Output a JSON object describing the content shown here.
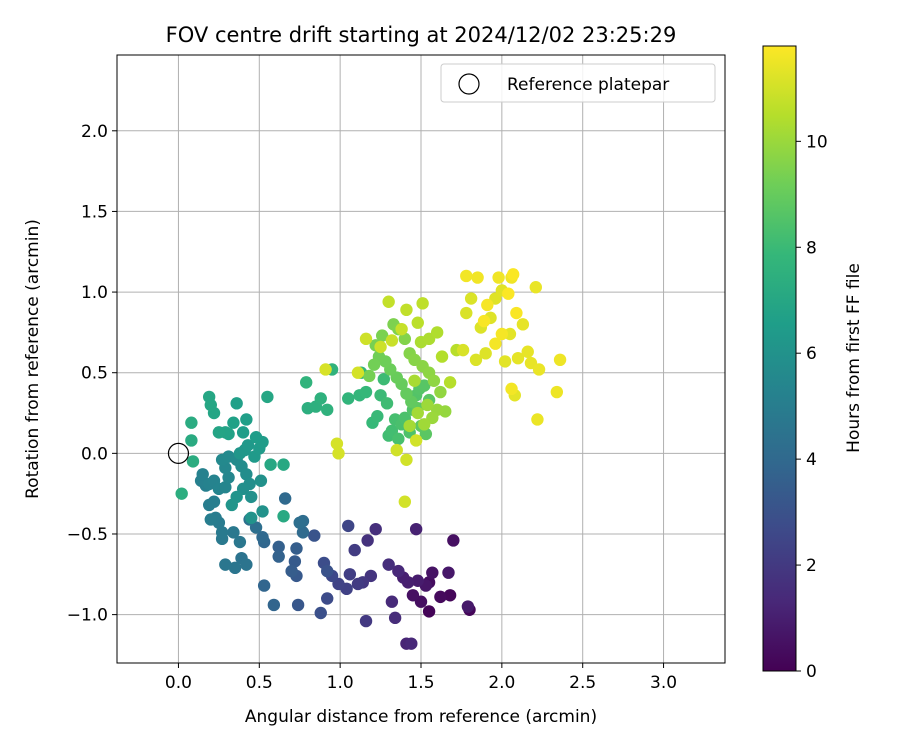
{
  "chart_data": {
    "type": "scatter",
    "title": "FOV centre drift starting at 2024/12/02 23:25:29",
    "xlabel": "Angular distance from reference (arcmin)",
    "ylabel": "Rotation from reference (arcmin)",
    "xlim": [
      -0.38,
      3.38
    ],
    "ylim": [
      -1.3,
      2.47
    ],
    "xticks": [
      0.0,
      0.5,
      1.0,
      1.5,
      2.0,
      2.5,
      3.0
    ],
    "xtick_labels": [
      "0.0",
      "0.5",
      "1.0",
      "1.5",
      "2.0",
      "2.5",
      "3.0"
    ],
    "yticks": [
      -1.0,
      -0.5,
      0.0,
      0.5,
      1.0,
      1.5,
      2.0
    ],
    "ytick_labels": [
      "−1.0",
      "−0.5",
      "0.0",
      "0.5",
      "1.0",
      "1.5",
      "2.0"
    ],
    "grid": true,
    "legend": {
      "position": "upper right",
      "entries": [
        "Reference platepar"
      ]
    },
    "reference_point": {
      "label": "Reference platepar",
      "x": 0.0,
      "y": 0.0
    },
    "colorbar": {
      "label": "Hours from first FF file",
      "colormap": "viridis",
      "range": [
        0,
        11.8
      ],
      "ticks": [
        0,
        2,
        4,
        6,
        8,
        10
      ],
      "tick_labels": [
        "0",
        "2",
        "4",
        "6",
        "8",
        "10"
      ]
    },
    "viridis_stops": [
      "#440154",
      "#482878",
      "#3e4989",
      "#31688e",
      "#26828e",
      "#1f9e89",
      "#35b779",
      "#6ece58",
      "#b5de2b",
      "#fde725"
    ],
    "color_by": "hours",
    "points": [
      {
        "x": 1.55,
        "y": -0.98,
        "h": 0.1
      },
      {
        "x": 1.8,
        "y": -0.97,
        "h": 0.15
      },
      {
        "x": 1.68,
        "y": -0.88,
        "h": 0.2
      },
      {
        "x": 1.62,
        "y": -0.89,
        "h": 0.3
      },
      {
        "x": 1.55,
        "y": -0.8,
        "h": 0.4
      },
      {
        "x": 1.5,
        "y": -0.92,
        "h": 0.45
      },
      {
        "x": 1.45,
        "y": -0.88,
        "h": 0.5
      },
      {
        "x": 1.7,
        "y": -0.54,
        "h": 0.5
      },
      {
        "x": 1.57,
        "y": -0.74,
        "h": 0.6
      },
      {
        "x": 1.53,
        "y": -0.82,
        "h": 0.7
      },
      {
        "x": 1.67,
        "y": -0.74,
        "h": 0.75
      },
      {
        "x": 1.79,
        "y": -0.95,
        "h": 0.8
      },
      {
        "x": 1.48,
        "y": -0.79,
        "h": 0.9
      },
      {
        "x": 1.42,
        "y": -0.8,
        "h": 1.0
      },
      {
        "x": 1.39,
        "y": -0.77,
        "h": 1.05
      },
      {
        "x": 1.47,
        "y": -0.47,
        "h": 1.1
      },
      {
        "x": 1.41,
        "y": -1.18,
        "h": 1.2
      },
      {
        "x": 1.44,
        "y": -1.18,
        "h": 1.3
      },
      {
        "x": 1.36,
        "y": -0.73,
        "h": 1.35
      },
      {
        "x": 1.32,
        "y": -0.92,
        "h": 1.4
      },
      {
        "x": 1.34,
        "y": -1.02,
        "h": 1.5
      },
      {
        "x": 1.3,
        "y": -0.69,
        "h": 1.55
      },
      {
        "x": 1.22,
        "y": -0.47,
        "h": 1.6
      },
      {
        "x": 1.17,
        "y": -0.54,
        "h": 1.7
      },
      {
        "x": 1.19,
        "y": -0.76,
        "h": 1.8
      },
      {
        "x": 1.14,
        "y": -0.8,
        "h": 1.9
      },
      {
        "x": 1.16,
        "y": -1.04,
        "h": 2.0
      },
      {
        "x": 1.11,
        "y": -0.81,
        "h": 2.05
      },
      {
        "x": 1.09,
        "y": -0.6,
        "h": 2.1
      },
      {
        "x": 1.06,
        "y": -0.75,
        "h": 2.2
      },
      {
        "x": 1.04,
        "y": -0.84,
        "h": 2.3
      },
      {
        "x": 0.99,
        "y": -0.81,
        "h": 2.4
      },
      {
        "x": 1.05,
        "y": -0.45,
        "h": 2.5
      },
      {
        "x": 0.95,
        "y": -0.76,
        "h": 2.6
      },
      {
        "x": 0.92,
        "y": -0.9,
        "h": 2.7
      },
      {
        "x": 0.9,
        "y": -0.68,
        "h": 2.8
      },
      {
        "x": 0.88,
        "y": -0.99,
        "h": 2.9
      },
      {
        "x": 0.92,
        "y": -0.73,
        "h": 3.0
      },
      {
        "x": 0.84,
        "y": -0.51,
        "h": 3.1
      },
      {
        "x": 0.74,
        "y": -0.94,
        "h": 3.2
      },
      {
        "x": 0.73,
        "y": -0.76,
        "h": 3.3
      },
      {
        "x": 0.72,
        "y": -0.67,
        "h": 3.4
      },
      {
        "x": 0.7,
        "y": -0.73,
        "h": 3.45
      },
      {
        "x": 0.73,
        "y": -0.59,
        "h": 3.5
      },
      {
        "x": 0.62,
        "y": -0.58,
        "h": 3.6
      },
      {
        "x": 0.62,
        "y": -0.64,
        "h": 3.7
      },
      {
        "x": 0.59,
        "y": -0.94,
        "h": 3.8
      },
      {
        "x": 0.53,
        "y": -0.82,
        "h": 3.85
      },
      {
        "x": 0.53,
        "y": -0.55,
        "h": 3.9
      },
      {
        "x": 0.52,
        "y": -0.52,
        "h": 4.0
      },
      {
        "x": 0.66,
        "y": -0.28,
        "h": 4.05
      },
      {
        "x": 0.77,
        "y": -0.49,
        "h": 4.1
      },
      {
        "x": 0.77,
        "y": -0.42,
        "h": 4.2
      },
      {
        "x": 0.75,
        "y": -0.43,
        "h": 4.3
      },
      {
        "x": 0.48,
        "y": -0.46,
        "h": 4.3
      },
      {
        "x": 0.44,
        "y": -0.41,
        "h": 4.4
      },
      {
        "x": 0.39,
        "y": -0.65,
        "h": 4.5
      },
      {
        "x": 0.42,
        "y": -0.69,
        "h": 4.55
      },
      {
        "x": 0.35,
        "y": -0.71,
        "h": 4.6
      },
      {
        "x": 0.29,
        "y": -0.69,
        "h": 4.65
      },
      {
        "x": 0.38,
        "y": -0.55,
        "h": 4.7
      },
      {
        "x": 0.34,
        "y": -0.49,
        "h": 4.75
      },
      {
        "x": 0.27,
        "y": -0.53,
        "h": 4.8
      },
      {
        "x": 0.27,
        "y": -0.49,
        "h": 4.85
      },
      {
        "x": 0.25,
        "y": -0.43,
        "h": 4.9
      },
      {
        "x": 0.23,
        "y": -0.4,
        "h": 4.95
      },
      {
        "x": 0.2,
        "y": -0.41,
        "h": 5.0
      },
      {
        "x": 0.19,
        "y": -0.32,
        "h": 5.0
      },
      {
        "x": 0.22,
        "y": -0.3,
        "h": 5.05
      },
      {
        "x": 0.17,
        "y": -0.2,
        "h": 5.1
      },
      {
        "x": 0.14,
        "y": -0.17,
        "h": 5.15
      },
      {
        "x": 0.15,
        "y": -0.13,
        "h": 5.2
      },
      {
        "x": 0.19,
        "y": -0.19,
        "h": 5.25
      },
      {
        "x": 0.22,
        "y": -0.17,
        "h": 5.3
      },
      {
        "x": 0.25,
        "y": -0.22,
        "h": 5.35
      },
      {
        "x": 0.29,
        "y": -0.21,
        "h": 5.4
      },
      {
        "x": 0.31,
        "y": -0.15,
        "h": 5.45
      },
      {
        "x": 0.29,
        "y": -0.09,
        "h": 5.5
      },
      {
        "x": 0.27,
        "y": -0.04,
        "h": 5.55
      },
      {
        "x": 0.31,
        "y": -0.02,
        "h": 5.6
      },
      {
        "x": 0.36,
        "y": -0.04,
        "h": 5.65
      },
      {
        "x": 0.39,
        "y": -0.08,
        "h": 5.7
      },
      {
        "x": 0.42,
        "y": -0.13,
        "h": 5.75
      },
      {
        "x": 0.44,
        "y": -0.19,
        "h": 5.8
      },
      {
        "x": 0.4,
        "y": -0.22,
        "h": 5.85
      },
      {
        "x": 0.45,
        "y": -0.27,
        "h": 5.9
      },
      {
        "x": 0.51,
        "y": -0.17,
        "h": 5.95
      },
      {
        "x": 0.52,
        "y": -0.36,
        "h": 6.0
      },
      {
        "x": 0.45,
        "y": -0.4,
        "h": 6.05
      },
      {
        "x": 0.36,
        "y": -0.27,
        "h": 6.1
      },
      {
        "x": 0.33,
        "y": -0.32,
        "h": 6.15
      },
      {
        "x": 0.38,
        "y": 0.0,
        "h": 6.2
      },
      {
        "x": 0.41,
        "y": 0.02,
        "h": 6.25
      },
      {
        "x": 0.43,
        "y": 0.05,
        "h": 6.3
      },
      {
        "x": 0.47,
        "y": -0.02,
        "h": 6.35
      },
      {
        "x": 0.5,
        "y": 0.03,
        "h": 6.4
      },
      {
        "x": 0.52,
        "y": 0.07,
        "h": 6.45
      },
      {
        "x": 0.48,
        "y": 0.1,
        "h": 6.5
      },
      {
        "x": 0.4,
        "y": 0.13,
        "h": 6.55
      },
      {
        "x": 0.42,
        "y": 0.21,
        "h": 6.6
      },
      {
        "x": 0.36,
        "y": 0.31,
        "h": 6.65
      },
      {
        "x": 0.34,
        "y": 0.19,
        "h": 6.7
      },
      {
        "x": 0.31,
        "y": 0.12,
        "h": 6.75
      },
      {
        "x": 0.29,
        "y": 0.13,
        "h": 6.8
      },
      {
        "x": 0.25,
        "y": 0.13,
        "h": 6.85
      },
      {
        "x": 0.22,
        "y": 0.25,
        "h": 6.9
      },
      {
        "x": 0.2,
        "y": 0.3,
        "h": 6.95
      },
      {
        "x": 0.19,
        "y": 0.35,
        "h": 7.0
      },
      {
        "x": 0.55,
        "y": 0.35,
        "h": 7.0
      },
      {
        "x": 0.57,
        "y": -0.07,
        "h": 7.05
      },
      {
        "x": 0.65,
        "y": -0.07,
        "h": 7.1
      },
      {
        "x": 0.65,
        "y": -0.39,
        "h": 7.15
      },
      {
        "x": 0.08,
        "y": 0.08,
        "h": 7.2
      },
      {
        "x": 0.08,
        "y": 0.19,
        "h": 7.25
      },
      {
        "x": 0.09,
        "y": -0.05,
        "h": 7.3
      },
      {
        "x": 0.02,
        "y": -0.25,
        "h": 7.35
      },
      {
        "x": 0.8,
        "y": 0.28,
        "h": 7.4
      },
      {
        "x": 0.85,
        "y": 0.29,
        "h": 7.45
      },
      {
        "x": 0.88,
        "y": 0.34,
        "h": 7.5
      },
      {
        "x": 0.92,
        "y": 0.27,
        "h": 7.55
      },
      {
        "x": 0.95,
        "y": 0.52,
        "h": 7.6
      },
      {
        "x": 0.79,
        "y": 0.44,
        "h": 7.65
      },
      {
        "x": 1.05,
        "y": 0.34,
        "h": 7.7
      },
      {
        "x": 1.12,
        "y": 0.36,
        "h": 7.75
      },
      {
        "x": 1.13,
        "y": 0.5,
        "h": 7.8
      },
      {
        "x": 1.16,
        "y": 0.38,
        "h": 7.85
      },
      {
        "x": 1.2,
        "y": 0.19,
        "h": 7.9
      },
      {
        "x": 1.23,
        "y": 0.23,
        "h": 7.95
      },
      {
        "x": 1.25,
        "y": 0.36,
        "h": 8.0
      },
      {
        "x": 1.27,
        "y": 0.46,
        "h": 8.05
      },
      {
        "x": 1.29,
        "y": 0.31,
        "h": 8.1
      },
      {
        "x": 1.3,
        "y": 0.11,
        "h": 8.15
      },
      {
        "x": 1.32,
        "y": 0.14,
        "h": 8.2
      },
      {
        "x": 1.34,
        "y": 0.21,
        "h": 8.25
      },
      {
        "x": 1.36,
        "y": 0.09,
        "h": 8.3
      },
      {
        "x": 1.38,
        "y": 0.18,
        "h": 8.35
      },
      {
        "x": 1.4,
        "y": 0.22,
        "h": 8.4
      },
      {
        "x": 1.43,
        "y": 0.13,
        "h": 8.45
      },
      {
        "x": 1.45,
        "y": 0.27,
        "h": 8.5
      },
      {
        "x": 1.47,
        "y": 0.36,
        "h": 8.55
      },
      {
        "x": 1.49,
        "y": 0.4,
        "h": 8.6
      },
      {
        "x": 1.52,
        "y": 0.42,
        "h": 8.65
      },
      {
        "x": 1.55,
        "y": 0.33,
        "h": 8.7
      },
      {
        "x": 1.53,
        "y": 0.12,
        "h": 8.75
      },
      {
        "x": 1.5,
        "y": 0.17,
        "h": 8.8
      },
      {
        "x": 1.48,
        "y": 0.28,
        "h": 8.85
      },
      {
        "x": 1.44,
        "y": 0.32,
        "h": 8.9
      },
      {
        "x": 1.41,
        "y": 0.37,
        "h": 8.95
      },
      {
        "x": 1.38,
        "y": 0.43,
        "h": 9.0
      },
      {
        "x": 1.35,
        "y": 0.47,
        "h": 9.05
      },
      {
        "x": 1.31,
        "y": 0.52,
        "h": 9.1
      },
      {
        "x": 1.28,
        "y": 0.57,
        "h": 9.15
      },
      {
        "x": 1.24,
        "y": 0.6,
        "h": 9.2
      },
      {
        "x": 1.21,
        "y": 0.55,
        "h": 9.25
      },
      {
        "x": 1.18,
        "y": 0.48,
        "h": 9.3
      },
      {
        "x": 1.22,
        "y": 0.67,
        "h": 9.35
      },
      {
        "x": 1.26,
        "y": 0.73,
        "h": 9.4
      },
      {
        "x": 1.33,
        "y": 0.8,
        "h": 9.45
      },
      {
        "x": 1.36,
        "y": 0.77,
        "h": 9.5
      },
      {
        "x": 1.4,
        "y": 0.71,
        "h": 9.55
      },
      {
        "x": 1.43,
        "y": 0.62,
        "h": 9.6
      },
      {
        "x": 1.46,
        "y": 0.58,
        "h": 9.65
      },
      {
        "x": 1.51,
        "y": 0.54,
        "h": 9.7
      },
      {
        "x": 1.55,
        "y": 0.5,
        "h": 9.75
      },
      {
        "x": 1.58,
        "y": 0.45,
        "h": 9.8
      },
      {
        "x": 1.62,
        "y": 0.38,
        "h": 9.85
      },
      {
        "x": 1.65,
        "y": 0.26,
        "h": 9.9
      },
      {
        "x": 1.6,
        "y": 0.27,
        "h": 9.95
      },
      {
        "x": 1.57,
        "y": 0.22,
        "h": 10.0
      },
      {
        "x": 1.54,
        "y": 0.3,
        "h": 10.05
      },
      {
        "x": 1.52,
        "y": 0.18,
        "h": 10.1
      },
      {
        "x": 1.48,
        "y": 0.25,
        "h": 10.15
      },
      {
        "x": 1.43,
        "y": 0.17,
        "h": 10.2
      },
      {
        "x": 1.46,
        "y": 0.45,
        "h": 10.25
      },
      {
        "x": 1.5,
        "y": 0.69,
        "h": 10.3
      },
      {
        "x": 1.55,
        "y": 0.71,
        "h": 10.35
      },
      {
        "x": 1.6,
        "y": 0.75,
        "h": 10.4
      },
      {
        "x": 1.63,
        "y": 0.6,
        "h": 10.45
      },
      {
        "x": 1.68,
        "y": 0.44,
        "h": 10.5
      },
      {
        "x": 1.72,
        "y": 0.64,
        "h": 10.55
      },
      {
        "x": 1.48,
        "y": 0.81,
        "h": 10.6
      },
      {
        "x": 1.51,
        "y": 0.93,
        "h": 10.65
      },
      {
        "x": 1.41,
        "y": 0.89,
        "h": 10.7
      },
      {
        "x": 1.3,
        "y": 0.94,
        "h": 10.75
      },
      {
        "x": 1.38,
        "y": 0.77,
        "h": 10.8
      },
      {
        "x": 1.32,
        "y": 0.7,
        "h": 10.85
      },
      {
        "x": 1.25,
        "y": 0.66,
        "h": 10.9
      },
      {
        "x": 1.16,
        "y": 0.71,
        "h": 10.95
      },
      {
        "x": 1.35,
        "y": 0.02,
        "h": 10.98
      },
      {
        "x": 1.41,
        "y": -0.04,
        "h": 11.0
      },
      {
        "x": 1.47,
        "y": 0.08,
        "h": 11.0
      },
      {
        "x": 1.4,
        "y": -0.3,
        "h": 11.02
      },
      {
        "x": 1.11,
        "y": 0.5,
        "h": 11.05
      },
      {
        "x": 0.98,
        "y": 0.06,
        "h": 11.07
      },
      {
        "x": 0.99,
        "y": 0.0,
        "h": 11.08
      },
      {
        "x": 0.91,
        "y": 0.52,
        "h": 11.1
      },
      {
        "x": 1.76,
        "y": 0.64,
        "h": 11.12
      },
      {
        "x": 1.78,
        "y": 0.87,
        "h": 11.14
      },
      {
        "x": 1.81,
        "y": 0.96,
        "h": 11.16
      },
      {
        "x": 1.84,
        "y": 0.58,
        "h": 11.18
      },
      {
        "x": 1.87,
        "y": 0.78,
        "h": 11.2
      },
      {
        "x": 1.9,
        "y": 0.62,
        "h": 11.22
      },
      {
        "x": 1.93,
        "y": 0.84,
        "h": 11.24
      },
      {
        "x": 1.96,
        "y": 0.96,
        "h": 11.26
      },
      {
        "x": 2.0,
        "y": 1.01,
        "h": 11.28
      },
      {
        "x": 2.02,
        "y": 0.57,
        "h": 11.3
      },
      {
        "x": 2.05,
        "y": 0.74,
        "h": 11.32
      },
      {
        "x": 2.08,
        "y": 0.36,
        "h": 11.34
      },
      {
        "x": 2.1,
        "y": 0.59,
        "h": 11.36
      },
      {
        "x": 2.13,
        "y": 0.8,
        "h": 11.38
      },
      {
        "x": 2.16,
        "y": 0.63,
        "h": 11.4
      },
      {
        "x": 2.18,
        "y": 0.56,
        "h": 11.42
      },
      {
        "x": 2.21,
        "y": 1.03,
        "h": 11.44
      },
      {
        "x": 2.23,
        "y": 0.52,
        "h": 11.46
      },
      {
        "x": 2.22,
        "y": 0.21,
        "h": 11.48
      },
      {
        "x": 2.34,
        "y": 0.38,
        "h": 11.5
      },
      {
        "x": 2.36,
        "y": 0.58,
        "h": 11.52
      },
      {
        "x": 2.06,
        "y": 1.09,
        "h": 11.54
      },
      {
        "x": 1.98,
        "y": 1.09,
        "h": 11.56
      },
      {
        "x": 1.85,
        "y": 1.09,
        "h": 11.58
      },
      {
        "x": 1.78,
        "y": 1.1,
        "h": 11.6
      },
      {
        "x": 2.06,
        "y": 0.4,
        "h": 11.62
      },
      {
        "x": 1.96,
        "y": 0.68,
        "h": 11.64
      },
      {
        "x": 2.0,
        "y": 0.74,
        "h": 11.66
      },
      {
        "x": 1.91,
        "y": 0.92,
        "h": 11.68
      },
      {
        "x": 1.89,
        "y": 0.82,
        "h": 11.7
      },
      {
        "x": 2.09,
        "y": 0.87,
        "h": 11.72
      },
      {
        "x": 2.07,
        "y": 1.11,
        "h": 11.74
      },
      {
        "x": 2.04,
        "y": 0.99,
        "h": 11.76
      }
    ]
  }
}
